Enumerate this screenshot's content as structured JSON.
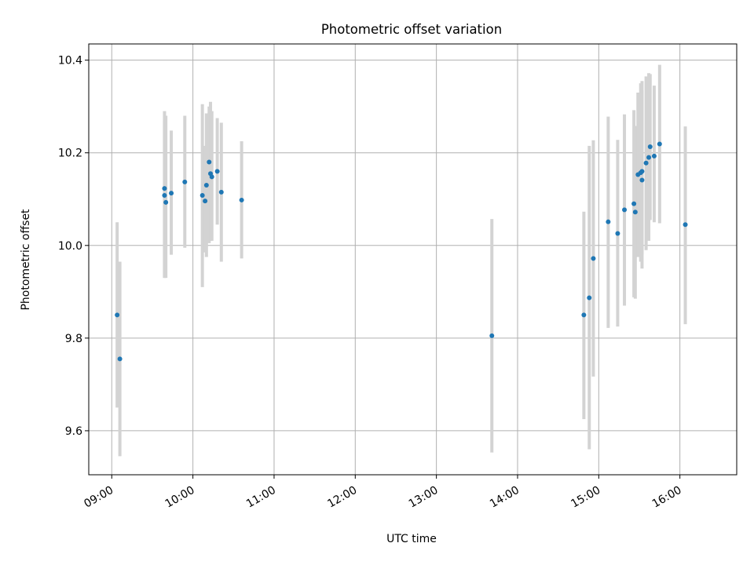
{
  "chart_data": {
    "type": "scatter",
    "title": "Photometric offset variation",
    "xlabel": "UTC time",
    "ylabel": "Photometric offset",
    "x_axis_type": "time",
    "xlim": [
      "08:43",
      "16:42"
    ],
    "ylim": [
      9.505,
      10.435
    ],
    "grid": true,
    "xticks": [
      "09:00",
      "10:00",
      "11:00",
      "12:00",
      "13:00",
      "14:00",
      "15:00",
      "16:00"
    ],
    "yticks": [
      "9.6",
      "9.8",
      "10.0",
      "10.2",
      "10.4"
    ],
    "colors": {
      "point": "#1f77b4",
      "errorbar": "#d3d3d3",
      "grid": "#b0b0b0"
    },
    "points": [
      {
        "x": "09:04",
        "y": 9.85,
        "err_low": 9.65,
        "err_high": 10.05
      },
      {
        "x": "09:06",
        "y": 9.755,
        "err_low": 9.545,
        "err_high": 9.965
      },
      {
        "x": "09:39",
        "y": 10.123,
        "err_low": 9.93,
        "err_high": 10.29
      },
      {
        "x": "09:39",
        "y": 10.108,
        "err_low": 9.93,
        "err_high": 10.27
      },
      {
        "x": "09:40",
        "y": 10.093,
        "err_low": 9.93,
        "err_high": 10.28
      },
      {
        "x": "09:44",
        "y": 10.113,
        "err_low": 9.98,
        "err_high": 10.248
      },
      {
        "x": "09:54",
        "y": 10.137,
        "err_low": 9.995,
        "err_high": 10.28
      },
      {
        "x": "10:07",
        "y": 10.108,
        "err_low": 9.91,
        "err_high": 10.305
      },
      {
        "x": "10:09",
        "y": 10.096,
        "err_low": 9.985,
        "err_high": 10.215
      },
      {
        "x": "10:10",
        "y": 10.13,
        "err_low": 9.975,
        "err_high": 10.285
      },
      {
        "x": "10:12",
        "y": 10.18,
        "err_low": 10.005,
        "err_high": 10.3
      },
      {
        "x": "10:13",
        "y": 10.155,
        "err_low": 10.01,
        "err_high": 10.31
      },
      {
        "x": "10:14",
        "y": 10.148,
        "err_low": 10.01,
        "err_high": 10.29
      },
      {
        "x": "10:18",
        "y": 10.16,
        "err_low": 10.045,
        "err_high": 10.275
      },
      {
        "x": "10:21",
        "y": 10.115,
        "err_low": 9.965,
        "err_high": 10.265
      },
      {
        "x": "10:36",
        "y": 10.098,
        "err_low": 9.972,
        "err_high": 10.225
      },
      {
        "x": "13:41",
        "y": 9.805,
        "err_low": 9.553,
        "err_high": 10.057
      },
      {
        "x": "14:49",
        "y": 9.85,
        "err_low": 9.625,
        "err_high": 10.073
      },
      {
        "x": "14:53",
        "y": 9.887,
        "err_low": 9.56,
        "err_high": 10.215
      },
      {
        "x": "14:56",
        "y": 9.972,
        "err_low": 9.717,
        "err_high": 10.227
      },
      {
        "x": "15:07",
        "y": 10.051,
        "err_low": 9.822,
        "err_high": 10.278
      },
      {
        "x": "15:14",
        "y": 10.026,
        "err_low": 9.825,
        "err_high": 10.228
      },
      {
        "x": "15:19",
        "y": 10.077,
        "err_low": 9.87,
        "err_high": 10.283
      },
      {
        "x": "15:26",
        "y": 10.09,
        "err_low": 9.888,
        "err_high": 10.292
      },
      {
        "x": "15:27",
        "y": 10.072,
        "err_low": 9.885,
        "err_high": 10.258
      },
      {
        "x": "15:29",
        "y": 10.153,
        "err_low": 9.975,
        "err_high": 10.33
      },
      {
        "x": "15:31",
        "y": 10.157,
        "err_low": 9.965,
        "err_high": 10.35
      },
      {
        "x": "15:32",
        "y": 10.16,
        "err_low": 9.98,
        "err_high": 10.355
      },
      {
        "x": "15:32",
        "y": 10.141,
        "err_low": 9.95,
        "err_high": 10.335
      },
      {
        "x": "15:35",
        "y": 10.178,
        "err_low": 9.99,
        "err_high": 10.365
      },
      {
        "x": "15:37",
        "y": 10.19,
        "err_low": 10.01,
        "err_high": 10.372
      },
      {
        "x": "15:38",
        "y": 10.213,
        "err_low": 10.055,
        "err_high": 10.37
      },
      {
        "x": "15:41",
        "y": 10.193,
        "err_low": 10.05,
        "err_high": 10.345
      },
      {
        "x": "15:45",
        "y": 10.219,
        "err_low": 10.048,
        "err_high": 10.39
      },
      {
        "x": "16:04",
        "y": 10.045,
        "err_low": 9.83,
        "err_high": 10.257
      }
    ]
  }
}
